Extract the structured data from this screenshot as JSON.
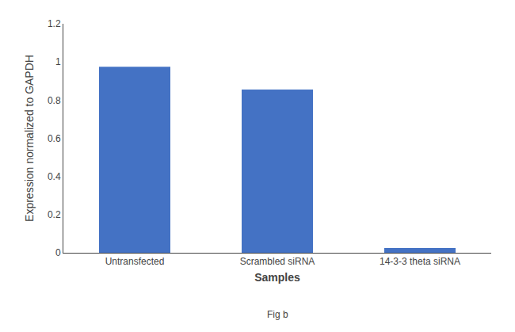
{
  "chart_data": {
    "type": "bar",
    "categories": [
      "Untransfected",
      "Scrambled siRNA",
      "14-3-3 theta siRNA"
    ],
    "values": [
      0.975,
      0.855,
      0.025
    ],
    "color": "#4472c4",
    "xlabel": "Samples",
    "ylabel": "Expression normalized to GAPDH",
    "ylim": [
      0,
      1.2
    ],
    "yticks": [
      0,
      0.2,
      0.4,
      0.6,
      0.8,
      1,
      1.2
    ],
    "grid": false,
    "annotations": [
      "Fig b"
    ]
  }
}
